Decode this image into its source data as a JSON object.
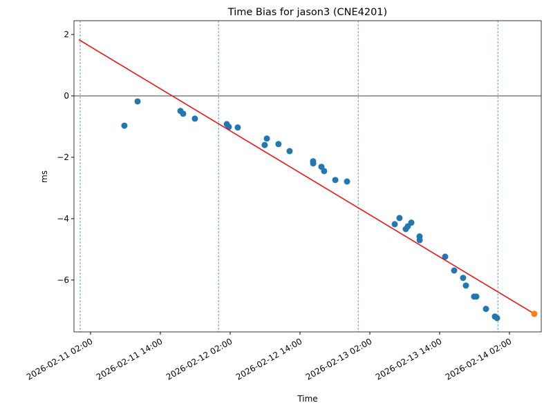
{
  "chart_data": {
    "type": "scatter",
    "title": "Time Bias for jason3 (CNE4201)",
    "x_label": "Time",
    "y_label": "ms",
    "xlim": [
      "2026-02-10 23:09",
      "2026-02-14 07:28"
    ],
    "ylim": [
      -7.69,
      2.45
    ],
    "xticks": [
      "2026-02-11 02:00",
      "2026-02-11 14:00",
      "2026-02-12 02:00",
      "2026-02-12 14:00",
      "2026-02-13 02:00",
      "2026-02-13 14:00",
      "2026-02-14 02:00"
    ],
    "yticks": [
      2,
      0,
      {
        "value": -2,
        "label": "−2"
      },
      {
        "value": -4,
        "label": "−4"
      },
      {
        "value": -6,
        "label": "−6"
      }
    ],
    "hline": {
      "y": 0,
      "color": "#000000"
    },
    "vlines": {
      "x": [
        "2026-02-11 00:13",
        "2026-02-12 00:00",
        "2026-02-13 00:00",
        "2026-02-14 00:00"
      ],
      "color": "#1f77b4"
    },
    "series": [
      {
        "type": "scatter",
        "color": "#1f77b4",
        "x": [
          "2026-02-11 07:49",
          "2026-02-11 10:05",
          "2026-02-11 17:27",
          "2026-02-11 17:55",
          "2026-02-11 19:56",
          "2026-02-12 01:25",
          "2026-02-12 01:46",
          "2026-02-12 03:18",
          "2026-02-12 07:56",
          "2026-02-12 08:18",
          "2026-02-12 10:18",
          "2026-02-12 12:13",
          "2026-02-12 16:15",
          "2026-02-12 16:16",
          "2026-02-12 17:41",
          "2026-02-12 18:09",
          "2026-02-12 20:04",
          "2026-02-12 22:05",
          "2026-02-13 06:17",
          "2026-02-13 07:06",
          "2026-02-13 08:11",
          "2026-02-13 08:32",
          "2026-02-13 09:08",
          "2026-02-13 10:33",
          "2026-02-13 10:34",
          "2026-02-13 14:57",
          "2026-02-13 16:30",
          "2026-02-13 18:02",
          "2026-02-13 18:31",
          "2026-02-13 19:56",
          "2026-02-13 20:18",
          "2026-02-13 21:58",
          "2026-02-13 23:30",
          "2026-02-13 23:52"
        ],
        "values": [
          -0.97,
          -0.18,
          -0.49,
          -0.58,
          -0.74,
          -0.92,
          -1.01,
          -1.03,
          -1.6,
          -1.39,
          -1.57,
          -1.8,
          -2.13,
          -2.2,
          -2.31,
          -2.45,
          -2.74,
          -2.79,
          -4.18,
          -3.98,
          -4.34,
          -4.25,
          -4.13,
          -4.58,
          -4.7,
          -5.24,
          -5.69,
          -5.93,
          -6.18,
          -6.54,
          -6.54,
          -6.94,
          -7.19,
          -7.24
        ]
      },
      {
        "type": "line",
        "color": "#ff0000",
        "x": [
          "2026-02-11 00:00",
          "2026-02-14 06:16"
        ],
        "values": [
          1.83,
          -7.1
        ]
      },
      {
        "type": "scatter",
        "color": "#ff7f0e",
        "x": [
          "2026-02-14 06:16"
        ],
        "values": [
          -7.1
        ]
      }
    ]
  }
}
